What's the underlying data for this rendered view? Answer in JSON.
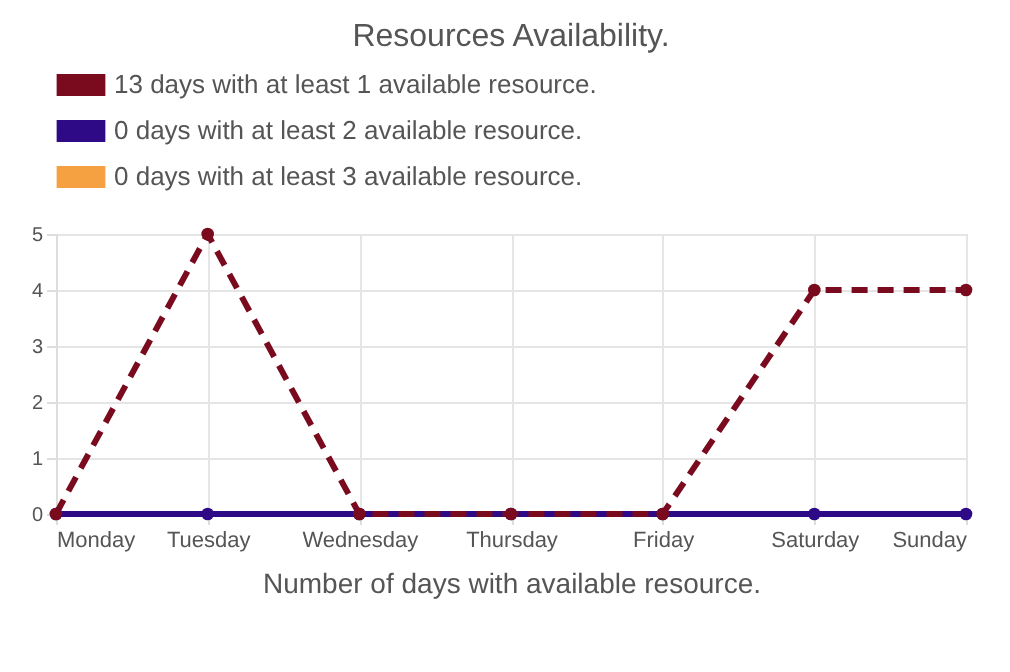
{
  "chart_data": {
    "type": "line",
    "title": "Resources Availability.",
    "xlabel": "Number of days with available resource.",
    "categories": [
      "Monday",
      "Tuesday",
      "Wednesday",
      "Thursday",
      "Friday",
      "Saturday",
      "Sunday"
    ],
    "series": [
      {
        "name": "13 days with at least 1 available resource.",
        "color": "#7a0a1e",
        "values": [
          0,
          5,
          0,
          0,
          0,
          4,
          4
        ],
        "line_style": "dashed"
      },
      {
        "name": "0 days with at least 2 available resource.",
        "color": "#2e0a87",
        "values": [
          0,
          0,
          0,
          0,
          0,
          0,
          0
        ],
        "line_style": "solid"
      },
      {
        "name": "0 days with at least 3 available resource.",
        "color": "#f5a142",
        "values": [
          null,
          null,
          null,
          null,
          null,
          null,
          null
        ],
        "line_style": "solid"
      }
    ],
    "ylim": [
      0,
      5
    ],
    "yticks": [
      0,
      1,
      2,
      3,
      4,
      5
    ],
    "grid": true,
    "legend": "top left",
    "marker": "circle"
  }
}
